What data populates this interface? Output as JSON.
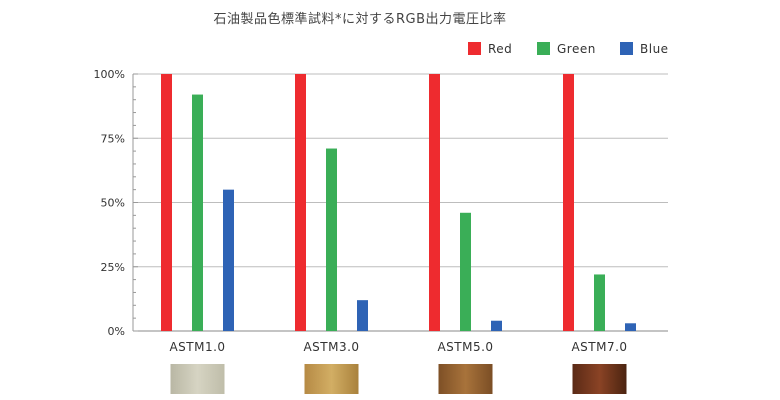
{
  "chart_data": {
    "type": "bar",
    "title": "石油製品色標準試料*に対するRGB出力電圧比率",
    "xlabel": "",
    "ylabel": "",
    "ylim": [
      0,
      100
    ],
    "yticks": [
      "0%",
      "25%",
      "50%",
      "75%",
      "100%"
    ],
    "ytick_values": [
      0,
      25,
      50,
      75,
      100
    ],
    "categories": [
      "ASTM1.0",
      "ASTM3.0",
      "ASTM5.0",
      "ASTM7.0"
    ],
    "series": [
      {
        "name": "Red",
        "color": "#ee2b2f",
        "values": [
          100,
          100,
          100,
          100
        ]
      },
      {
        "name": "Green",
        "color": "#3aae57",
        "values": [
          92,
          71,
          46,
          22
        ]
      },
      {
        "name": "Blue",
        "color": "#2e63b5",
        "values": [
          55,
          12,
          4,
          3
        ]
      }
    ],
    "grid": true,
    "legend_position": "top-right",
    "sample_swatches": [
      {
        "category": "ASTM1.0",
        "colors": [
          "#b9b7a4",
          "#d6d4c3",
          "#bfbda9"
        ]
      },
      {
        "category": "ASTM3.0",
        "colors": [
          "#b68a45",
          "#d2ae64",
          "#a9813c"
        ]
      },
      {
        "category": "ASTM5.0",
        "colors": [
          "#7e5026",
          "#a8733b",
          "#7b4e25"
        ]
      },
      {
        "category": "ASTM7.0",
        "colors": [
          "#5a2a16",
          "#8a4325",
          "#4b2410"
        ]
      }
    ]
  }
}
